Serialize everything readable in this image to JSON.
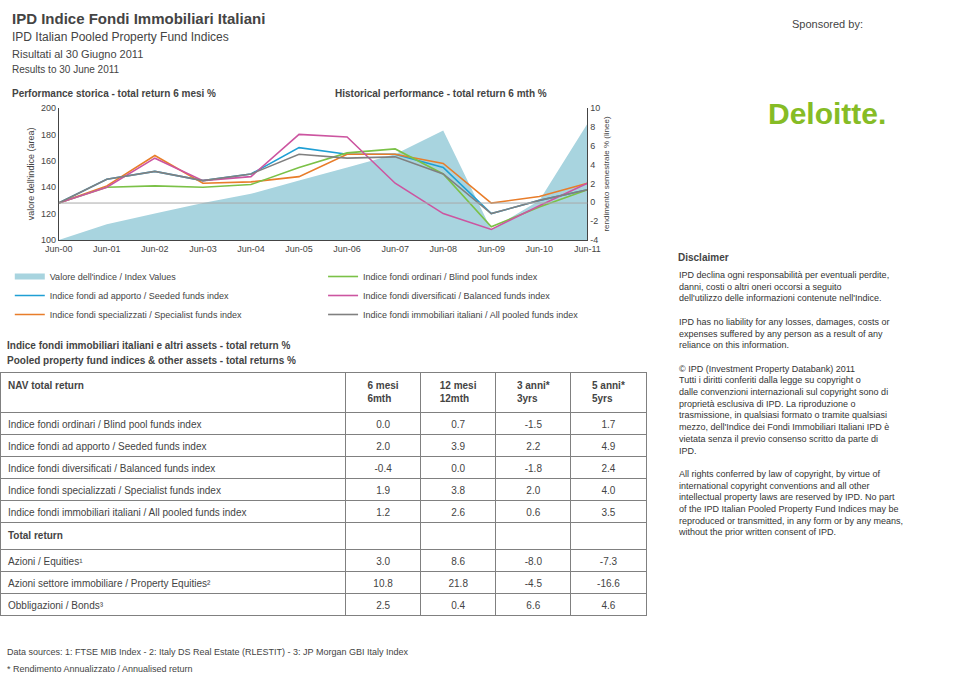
{
  "page": {
    "title": [
      "IPD Indice Fondi Immobiliari Italiani",
      "IPD Italian Pooled Property Fund Indices",
      "Risultati al 30 Giugno 2011",
      "Results to 30 June 2011"
    ],
    "sponsor": [
      "Sponsored by:",
      "Deloitte."
    ],
    "disclaimer": {
      "title": "Disclaimer",
      "paragraphs": [
        "IPD declina ogni responsabilità per eventuali perdite, danni, costi o altri oneri occorsi a seguito dell'utilizzo delle informazioni contenute nell'Indice.",
        "IPD has no liability for any losses, damages, costs or expenses suffered by any person as a result of any reliance on this information.",
        "© IPD (Investment Property Databank) 2011\nTutti i diritti conferiti dalla legge su copyright o dalle convenzioni internazionali sul copyright sono di proprietà esclusiva di IPD. La riproduzione o trasmissione, in qualsiasi formato o tramite qualsiasi mezzo, dell'Indice dei Fondi Immobiliari Italiani IPD è vietata senza il previo consenso scritto da parte di IPD.",
        "All rights conferred by law of copyright, by virtue of international copyright conventions and all other intellectual property laws are reserved by IPD. No part of the IPD Italian Pooled Property Fund Indices may be reproduced or transmitted, in any form or by any means, without the prior written consent of IPD."
      ]
    }
  },
  "chart_data": [
    {
      "type": "line",
      "title": "Performance storica - total return 6 mesi %",
      "subtitle": "Historical performance - total return 6 mth %",
      "categories": [
        "Jun-00",
        "Jun-01",
        "Jun-02",
        "Jun-03",
        "Jun-04",
        "Jun-05",
        "Jun-06",
        "Jun-07",
        "Jun-08",
        "Jun-09",
        "Jun-10",
        "Jun-11"
      ],
      "series": [
        {
          "name": "Valore dell'indice / Index Values",
          "type": "area",
          "color": "#a8d4df",
          "values": [
            100,
            112,
            120,
            128,
            135,
            145,
            155,
            165,
            183,
            108,
            130,
            188
          ]
        },
        {
          "name": "Indice fondi ad apporto / Seeded funds index",
          "type": "line",
          "color": "#1f9fd4",
          "values": [
            128,
            146,
            152,
            145,
            150,
            170,
            165,
            165,
            155,
            120,
            130,
            138
          ]
        },
        {
          "name": "Indice fondi specializzati / Specialist funds index",
          "type": "line",
          "color": "#e87d2a",
          "values": [
            128,
            141,
            164,
            143,
            144,
            148,
            165,
            165,
            158,
            128,
            133,
            143
          ]
        },
        {
          "name": "Indice fondi ordinari / Blind pool funds index",
          "type": "line",
          "color": "#7bc147",
          "values": [
            128,
            140,
            141,
            140,
            142,
            155,
            166,
            169,
            150,
            110,
            125,
            138
          ]
        },
        {
          "name": "Indice fondi diversificati / Balanced funds index",
          "type": "line",
          "color": "#cc55a0",
          "values": [
            128,
            140,
            162,
            145,
            148,
            180,
            178,
            143,
            120,
            108,
            126,
            143
          ]
        },
        {
          "name": "Indice fondi immobiliari italiani / All pooled funds index",
          "type": "line",
          "color": "#808080",
          "values": [
            128,
            146,
            152,
            145,
            150,
            165,
            162,
            163,
            150,
            120,
            130,
            138
          ]
        }
      ],
      "hline": 128,
      "ylabel": "valore dell'indice (area)",
      "y2label": "rendimento semestrale % (linee)",
      "ylim": [
        100,
        200
      ],
      "yticks": [
        100,
        120,
        140,
        160,
        180,
        200
      ],
      "y2lim": [
        -4,
        10
      ],
      "y2ticks": [
        -4,
        -2,
        0,
        2,
        4,
        6,
        8,
        10
      ],
      "grid": false,
      "legend": "bottom"
    },
    {
      "type": "table",
      "title": "Indice fondi immobiliari italiani e altri assets - total return %",
      "subtitle": "Pooled property fund indices & other assets - total returns %",
      "columns": [
        "6 mesi\n6mth",
        "12 mesi\n12mth",
        "3 anni*\n3yrs",
        "5 anni*\n5yrs"
      ],
      "sections": [
        {
          "name": "NAV total return",
          "rows": [
            {
              "label": "Indice fondi ordinari / Blind pool funds index",
              "values": [
                "0.0",
                "0.7",
                "-1.5",
                "1.7"
              ]
            },
            {
              "label": "Indice fondi ad apporto / Seeded funds index",
              "values": [
                "2.0",
                "3.9",
                "2.2",
                "4.9"
              ]
            },
            {
              "label": "Indice fondi diversificati / Balanced funds index",
              "values": [
                "-0.4",
                "0.0",
                "-1.8",
                "2.4"
              ]
            },
            {
              "label": "Indice fondi specializzati / Specialist funds index",
              "values": [
                "1.9",
                "3.8",
                "2.0",
                "4.0"
              ]
            },
            {
              "label": "Indice fondi immobiliari italiani / All pooled funds index",
              "values": [
                "1.2",
                "2.6",
                "0.6",
                "3.5"
              ]
            }
          ]
        },
        {
          "name": "Total return",
          "rows": [
            {
              "label": "Azioni / Equities¹",
              "values": [
                "3.0",
                "8.6",
                "-8.0",
                "-7.3"
              ]
            },
            {
              "label": "Azioni settore immobiliare / Property Equities²",
              "values": [
                "10.8",
                "21.8",
                "-4.5",
                "-16.6"
              ]
            },
            {
              "label": "Obbligazioni / Bonds³",
              "values": [
                "2.5",
                "0.4",
                "6.6",
                "4.6"
              ]
            }
          ]
        }
      ],
      "notes": [
        "Data sources: 1: FTSE MIB Index - 2: Italy DS Real Estate (RLESTIT) - 3: JP Morgan GBI Italy Index",
        "* Rendimento Annualizzato / Annualised return"
      ]
    }
  ]
}
